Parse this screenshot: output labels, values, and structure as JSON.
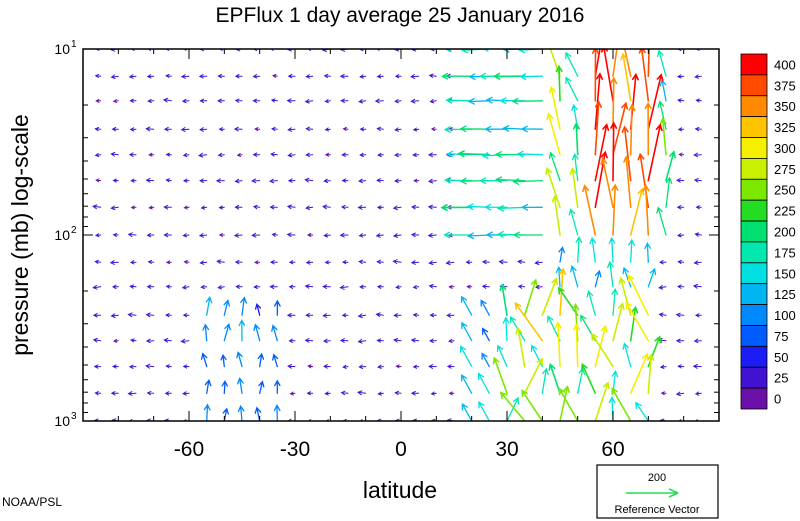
{
  "chart_data": {
    "type": "vector_field",
    "title": "EPFlux  1 day average  25 January   2016",
    "xlabel": "latitude",
    "ylabel": "pressure (mb)  log-scale",
    "x_range": [
      -90,
      90
    ],
    "y_range_mb": [
      1000,
      10
    ],
    "y_scale": "log",
    "x_ticks": [
      {
        "value": -60,
        "label": "-60"
      },
      {
        "value": -30,
        "label": "-30"
      },
      {
        "value": 0,
        "label": "0"
      },
      {
        "value": 30,
        "label": "30"
      },
      {
        "value": 60,
        "label": "60"
      }
    ],
    "y_ticks": [
      {
        "value": 10,
        "base": "10",
        "exp": "1"
      },
      {
        "value": 100,
        "base": "10",
        "exp": "2"
      },
      {
        "value": 1000,
        "base": "10",
        "exp": "3"
      }
    ],
    "colorbar": {
      "levels": [
        "400",
        "375",
        "350",
        "325",
        "300",
        "275",
        "250",
        "225",
        "200",
        "175",
        "150",
        "125",
        "100",
        "75",
        "50",
        "25",
        "0"
      ],
      "colors": [
        "#ff0000",
        "#ff4a00",
        "#ff8a00",
        "#ffc400",
        "#f4f000",
        "#c8ee00",
        "#7ce800",
        "#22dd22",
        "#00e070",
        "#00e8b0",
        "#00e0e0",
        "#00b6f2",
        "#0088ff",
        "#005cff",
        "#1c1cf4",
        "#4212d2",
        "#6a10a8"
      ]
    },
    "reference_vector": {
      "value": "200",
      "label": "Reference Vector",
      "color": "#22dd55"
    },
    "vectors": {
      "description_free_field": true,
      "lat_start": -85,
      "lat_step": 5,
      "lat_count": 35,
      "pressure_levels": [
        10,
        14,
        19,
        27,
        37,
        51,
        71,
        100,
        140,
        190,
        270,
        370,
        510,
        710,
        1000
      ]
    }
  },
  "credit": "NOAA/PSL"
}
